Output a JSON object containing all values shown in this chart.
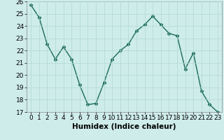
{
  "x": [
    0,
    1,
    2,
    3,
    4,
    5,
    6,
    7,
    8,
    9,
    10,
    11,
    12,
    13,
    14,
    15,
    16,
    17,
    18,
    19,
    20,
    21,
    22,
    23
  ],
  "y": [
    25.7,
    24.7,
    22.5,
    21.3,
    22.3,
    21.3,
    19.2,
    17.6,
    17.7,
    19.4,
    21.3,
    22.0,
    22.5,
    23.6,
    24.1,
    24.8,
    24.1,
    23.4,
    23.2,
    20.5,
    21.8,
    18.7,
    17.6,
    17.0
  ],
  "xlabel": "Humidex (Indice chaleur)",
  "ylim": [
    17,
    26
  ],
  "xlim": [
    -0.5,
    23.5
  ],
  "yticks": [
    17,
    18,
    19,
    20,
    21,
    22,
    23,
    24,
    25,
    26
  ],
  "xticks": [
    0,
    1,
    2,
    3,
    4,
    5,
    6,
    7,
    8,
    9,
    10,
    11,
    12,
    13,
    14,
    15,
    16,
    17,
    18,
    19,
    20,
    21,
    22,
    23
  ],
  "line_color": "#1a6b5a",
  "marker": "D",
  "marker_size": 2.5,
  "bg_color": "#ceecea",
  "grid_color": "#b0d8d4",
  "xlabel_fontsize": 7.5,
  "tick_fontsize": 6.5,
  "linewidth": 1.0
}
